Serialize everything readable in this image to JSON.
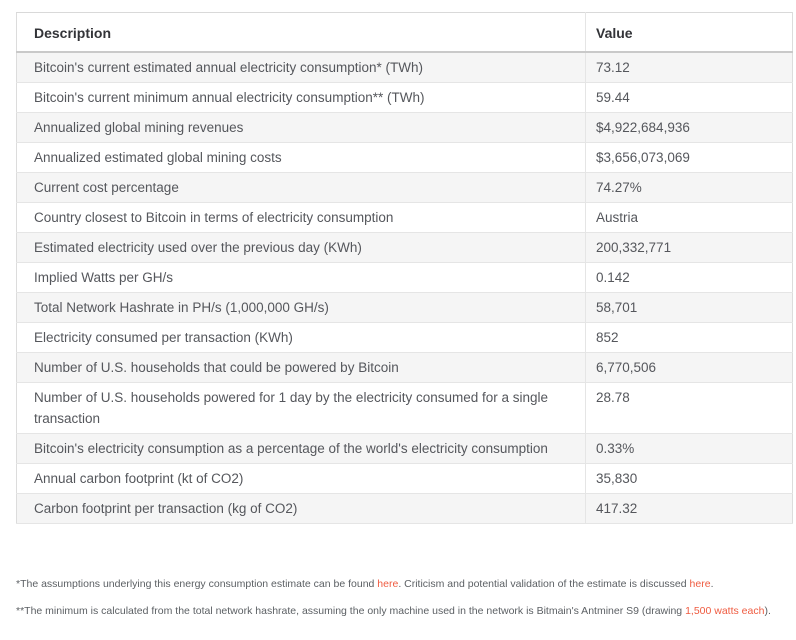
{
  "colors": {
    "link_accent": "#ef5b40",
    "row_stripe": "#f5f5f5",
    "header_rule": "#c9c9c9",
    "row_rule": "#e5e5e5",
    "body_text": "#55575c",
    "header_text": "#333438"
  },
  "table": {
    "columns": [
      {
        "label": "Description"
      },
      {
        "label": "Value"
      }
    ],
    "rows": [
      {
        "description": "Bitcoin's current estimated annual electricity consumption* (TWh)",
        "value": "73.12"
      },
      {
        "description": "Bitcoin's current minimum annual electricity consumption** (TWh)",
        "value": "59.44"
      },
      {
        "description": "Annualized global mining revenues",
        "value": "$4,922,684,936"
      },
      {
        "description": "Annualized estimated global mining costs",
        "value": "$3,656,073,069"
      },
      {
        "description": "Current cost percentage",
        "value": "74.27%"
      },
      {
        "description": "Country closest to Bitcoin in terms of electricity consumption",
        "value": "Austria"
      },
      {
        "description": "Estimated electricity used over the previous day (KWh)",
        "value": "200,332,771"
      },
      {
        "description": "Implied Watts per GH/s",
        "value": "0.142"
      },
      {
        "description": "Total Network Hashrate in PH/s (1,000,000 GH/s)",
        "value": "58,701"
      },
      {
        "description": "Electricity consumed per transaction (KWh)",
        "value": "852"
      },
      {
        "description": "Number of U.S. households that could be powered by Bitcoin",
        "value": "6,770,506"
      },
      {
        "description": "Number of U.S. households powered for 1 day by the electricity consumed for a single transaction",
        "value": "28.78"
      },
      {
        "description": "Bitcoin's electricity consumption as a percentage of the world's electricity consumption",
        "value": "0.33%"
      },
      {
        "description": "Annual carbon footprint (kt of CO2)",
        "value": "35,830"
      },
      {
        "description": "Carbon footprint per transaction (kg of CO2)",
        "value": "417.32"
      }
    ]
  },
  "footnotes": {
    "note1": {
      "pre": "*The assumptions underlying this energy consumption estimate can be found ",
      "link1": "here",
      "mid": ". Criticism and potential validation of the estimate is discussed ",
      "link2": "here",
      "post": "."
    },
    "note2": {
      "pre": "**The minimum is calculated from the total network hashrate, assuming the only machine used in the network is Bitmain's Antminer S9 (drawing ",
      "link1": "1,500 watts each",
      "post": ")."
    }
  }
}
